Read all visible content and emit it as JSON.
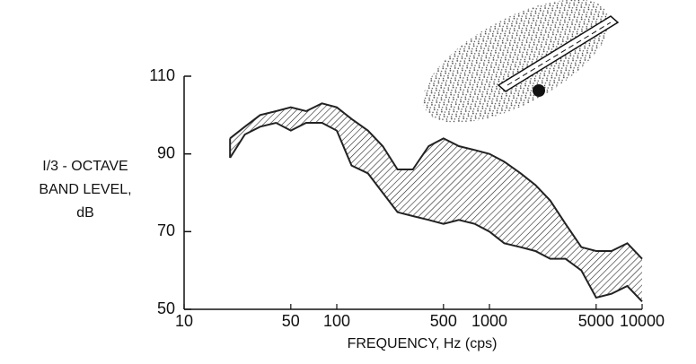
{
  "chart_data": {
    "type": "range_area",
    "y_label": [
      "I/3 - OCTAVE",
      "BAND LEVEL,",
      "dB"
    ],
    "x_label": "FREQUENCY, Hz (cps)",
    "x": [
      20,
      25,
      31.5,
      40,
      50,
      63,
      80,
      100,
      125,
      160,
      200,
      250,
      315,
      400,
      500,
      630,
      800,
      1000,
      1250,
      1600,
      2000,
      2500,
      3150,
      4000,
      5000,
      6300,
      8000,
      10000
    ],
    "upper": [
      94,
      97,
      100,
      101,
      102,
      101,
      103,
      102,
      99,
      96,
      92,
      86,
      86,
      92,
      94,
      92,
      91,
      90,
      88,
      85,
      82,
      78,
      72,
      66,
      65,
      65,
      67,
      63
    ],
    "lower": [
      89,
      95,
      97,
      98,
      96,
      98,
      98,
      96,
      87,
      85,
      80,
      75,
      74,
      73,
      72,
      73,
      72,
      70,
      67,
      66,
      65,
      63,
      63,
      60,
      53,
      54,
      56,
      52
    ],
    "color": "#222222",
    "xscale": "log",
    "xlim": [
      10,
      10000
    ],
    "xticks": [
      10,
      50,
      100,
      500,
      1000,
      5000,
      10000
    ],
    "ylim": [
      50,
      110
    ],
    "yticks": [
      50,
      70,
      90,
      110
    ]
  }
}
